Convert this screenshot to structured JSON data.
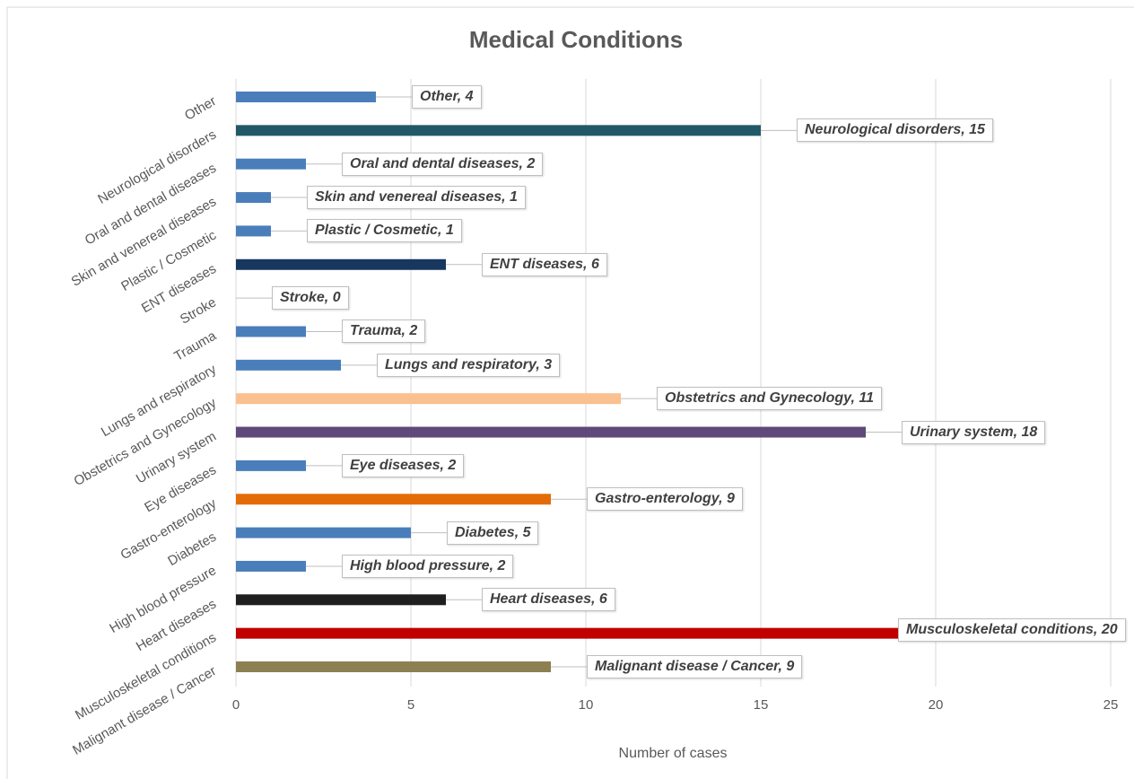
{
  "chart_data": {
    "type": "barh",
    "title": "Medical Conditions",
    "x_label": "Number of cases",
    "categories": [
      "Malignant disease / Cancer",
      "Musculoskeletal conditions",
      "Heart diseases",
      "High blood pressure",
      "Diabetes",
      "Gastro-enterology",
      "Eye diseases",
      "Urinary system",
      "Obstetrics and Gynecology",
      "Lungs and respiratory",
      "Trauma",
      "Stroke",
      "ENT diseases",
      "Plastic / Cosmetic",
      "Skin and venereal diseases",
      "Oral and dental diseases",
      "Neurological disorders",
      "Other"
    ],
    "values": [
      9,
      20,
      6,
      2,
      5,
      9,
      2,
      18,
      11,
      3,
      2,
      0,
      6,
      1,
      1,
      2,
      15,
      4
    ],
    "value_labels": [
      "Malignant disease / Cancer, 9",
      "Musculoskeletal conditions, 20",
      "Heart diseases, 6",
      "High blood pressure, 2",
      "Diabetes, 5",
      "Gastro-enterology, 9",
      "Eye diseases, 2",
      "Urinary system, 18",
      "Obstetrics and Gynecology, 11",
      "Lungs and respiratory, 3",
      "Trauma, 2",
      "Stroke, 0",
      "ENT diseases, 6",
      "Plastic / Cosmetic, 1",
      "Skin and venereal diseases, 1",
      "Oral and dental diseases, 2",
      "Neurological disorders, 15",
      "Other, 4"
    ],
    "colors": [
      "#8c8053",
      "#c00000",
      "#1f1f1f",
      "#4a7ebb",
      "#4a7ebb",
      "#e36c09",
      "#4a7ebb",
      "#5f497a",
      "#fac08f",
      "#4a7ebb",
      "#4a7ebb",
      "#4a7ebb",
      "#17375e",
      "#4a7ebb",
      "#4a7ebb",
      "#4a7ebb",
      "#215967",
      "#4a7ebb"
    ],
    "xlim": [
      0,
      25
    ],
    "xticks": [
      0,
      5,
      10,
      15,
      20,
      25
    ],
    "grid": true
  }
}
